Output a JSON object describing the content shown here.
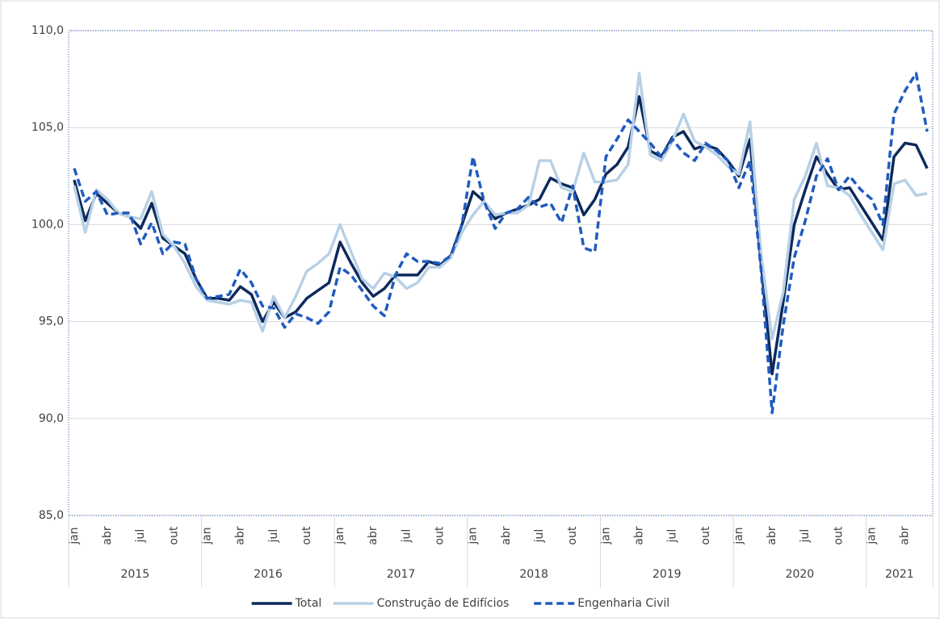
{
  "chart_data": {
    "type": "line",
    "categories": [
      "jan",
      null,
      null,
      "abr",
      null,
      null,
      "jul",
      null,
      null,
      "out",
      null,
      null,
      "jan",
      null,
      null,
      "abr",
      null,
      null,
      "jul",
      null,
      null,
      "out",
      null,
      null,
      "jan",
      null,
      null,
      "abr",
      null,
      null,
      "jul",
      null,
      null,
      "out",
      null,
      null,
      "jan",
      null,
      null,
      "abr",
      null,
      null,
      "jul",
      null,
      null,
      "out",
      null,
      null,
      "jan",
      null,
      null,
      "abr",
      null,
      null,
      "jul",
      null,
      null,
      "out",
      null,
      null,
      "jan",
      null,
      null,
      "abr",
      null,
      null,
      "jul",
      null,
      null,
      "out",
      null,
      null,
      "jan",
      null,
      null,
      "abr",
      null,
      null
    ],
    "year_groups": [
      {
        "label": "2015",
        "count": 12
      },
      {
        "label": "2016",
        "count": 12
      },
      {
        "label": "2017",
        "count": 12
      },
      {
        "label": "2018",
        "count": 12
      },
      {
        "label": "2019",
        "count": 12
      },
      {
        "label": "2020",
        "count": 12
      },
      {
        "label": "2021",
        "count": 6
      }
    ],
    "ylim": [
      85,
      110
    ],
    "yticks": [
      {
        "value": 85,
        "label": "85,0"
      },
      {
        "value": 90,
        "label": "90,0"
      },
      {
        "value": 95,
        "label": "95,0"
      },
      {
        "value": 100,
        "label": "100,0"
      },
      {
        "value": 105,
        "label": "105,0"
      },
      {
        "value": 110,
        "label": "110,0"
      }
    ],
    "grid": true,
    "legend": "bottom",
    "series": [
      {
        "name": "Total",
        "color": "#0d2a5c",
        "dash": false,
        "values": [
          102.3,
          100.2,
          101.6,
          101.1,
          100.6,
          100.4,
          99.8,
          101.1,
          99.3,
          98.9,
          98.5,
          97.2,
          96.2,
          96.2,
          96.1,
          96.8,
          96.4,
          95.0,
          96.0,
          95.2,
          95.5,
          96.2,
          96.6,
          97.0,
          99.1,
          98.0,
          97.0,
          96.3,
          96.7,
          97.4,
          97.4,
          97.4,
          98.1,
          97.9,
          98.4,
          100.0,
          101.7,
          101.2,
          100.3,
          100.6,
          100.8,
          101.0,
          101.3,
          102.4,
          102.1,
          101.9,
          100.5,
          101.3,
          102.6,
          103.1,
          104.0,
          106.6,
          103.8,
          103.5,
          104.5,
          104.8,
          103.9,
          104.1,
          103.9,
          103.3,
          102.5,
          104.4,
          98.0,
          92.3,
          96.0,
          100.0,
          101.8,
          103.5,
          102.6,
          101.8,
          101.9,
          101.0,
          100.1,
          99.2,
          103.5,
          104.2,
          104.1,
          102.9
        ]
      },
      {
        "name": "Construção de Edifícios",
        "color": "#b8d0e6",
        "dash": false,
        "values": [
          102.0,
          99.6,
          101.8,
          101.3,
          100.6,
          100.4,
          100.3,
          101.7,
          99.5,
          98.9,
          98.0,
          96.8,
          96.1,
          96.0,
          95.9,
          96.1,
          96.0,
          94.5,
          96.3,
          95.2,
          96.3,
          97.6,
          98.0,
          98.5,
          100.0,
          98.6,
          97.2,
          96.7,
          97.5,
          97.3,
          96.7,
          97.0,
          97.8,
          97.8,
          98.3,
          99.6,
          100.5,
          101.2,
          100.5,
          100.6,
          100.6,
          101.0,
          103.3,
          103.3,
          101.9,
          101.7,
          103.7,
          102.2,
          102.2,
          102.3,
          103.1,
          107.8,
          103.6,
          103.3,
          104.3,
          105.7,
          104.3,
          104.0,
          103.6,
          103.0,
          102.6,
          105.3,
          98.5,
          94.1,
          96.5,
          101.3,
          102.5,
          104.2,
          102.0,
          101.9,
          101.5,
          100.5,
          99.6,
          98.7,
          102.1,
          102.3,
          101.5,
          101.6
        ]
      },
      {
        "name": "Engenharia Civil",
        "color": "#1f5bbf",
        "dash": true,
        "values": [
          102.9,
          101.2,
          101.7,
          100.5,
          100.6,
          100.6,
          99.0,
          100.1,
          98.5,
          99.1,
          99.0,
          97.2,
          96.2,
          96.3,
          96.4,
          97.7,
          97.0,
          95.8,
          95.7,
          94.7,
          95.4,
          95.2,
          94.9,
          95.5,
          97.8,
          97.4,
          96.6,
          95.8,
          95.3,
          97.4,
          98.5,
          98.1,
          98.1,
          98.0,
          98.4,
          100.0,
          103.5,
          101.2,
          99.8,
          100.6,
          100.8,
          101.4,
          100.9,
          101.1,
          100.1,
          102.0,
          98.8,
          98.6,
          103.5,
          104.4,
          105.4,
          104.8,
          104.2,
          103.5,
          104.4,
          103.7,
          103.3,
          104.2,
          103.8,
          103.3,
          101.9,
          103.3,
          97.7,
          90.3,
          94.8,
          98.3,
          100.2,
          102.5,
          103.4,
          101.8,
          102.5,
          101.8,
          101.3,
          100.0,
          105.7,
          106.9,
          107.8,
          104.8
        ]
      }
    ]
  }
}
